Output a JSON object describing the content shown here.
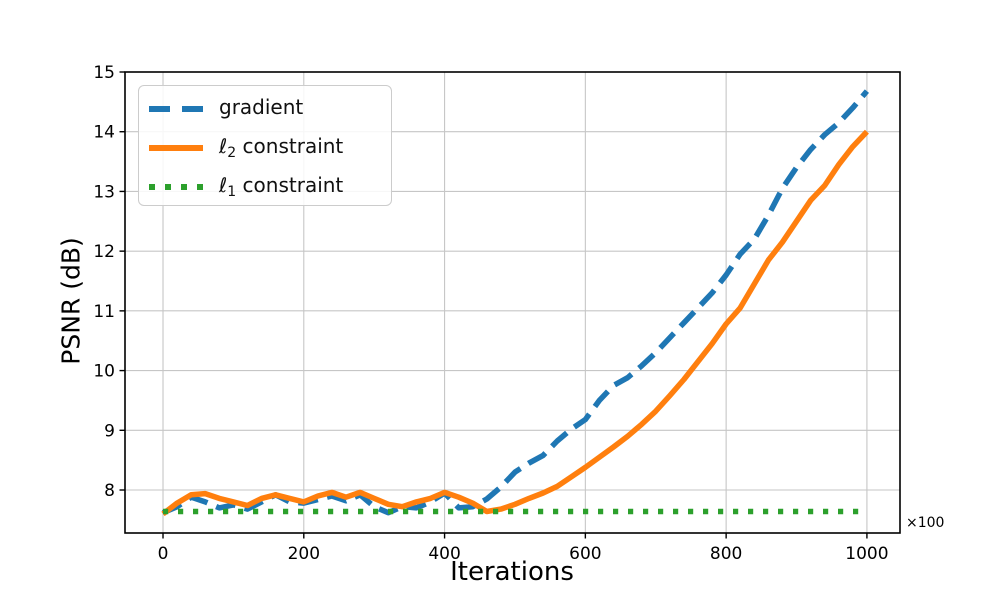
{
  "figure": {
    "background": "#ffffff",
    "spine_color": "#000000",
    "grid_color": "#c6c6c6",
    "tick_label_color": "#000000"
  },
  "legend": {
    "items": [
      {
        "ell": "",
        "sub": "",
        "main": "gradient"
      },
      {
        "ell": "ℓ",
        "sub": "2",
        "main": " constraint"
      },
      {
        "ell": "ℓ",
        "sub": "1",
        "main": " constraint"
      }
    ]
  },
  "chart_data": {
    "type": "line",
    "title": "",
    "xlabel": "Iterations",
    "ylabel": "PSNR (dB)",
    "x_offset_note": "×100",
    "xlim": [
      -54,
      1047
    ],
    "ylim": [
      7.28,
      15.0
    ],
    "x_ticks": [
      0,
      200,
      400,
      600,
      800,
      1000
    ],
    "y_ticks": [
      8,
      9,
      10,
      11,
      12,
      13,
      14,
      15
    ],
    "grid": true,
    "legend_position": "upper left",
    "x": [
      0,
      20,
      40,
      60,
      80,
      100,
      120,
      140,
      160,
      180,
      200,
      220,
      240,
      260,
      280,
      300,
      320,
      340,
      360,
      380,
      400,
      420,
      440,
      460,
      480,
      500,
      520,
      540,
      560,
      580,
      600,
      620,
      640,
      660,
      680,
      700,
      720,
      740,
      760,
      780,
      800,
      820,
      840,
      860,
      880,
      900,
      920,
      940,
      960,
      980,
      1000
    ],
    "series": [
      {
        "name": "gradient",
        "color": "#1f77b4",
        "line_style": "dashed",
        "line_width": 5.5,
        "values": [
          7.62,
          7.72,
          7.88,
          7.8,
          7.7,
          7.75,
          7.68,
          7.8,
          7.92,
          7.8,
          7.78,
          7.84,
          7.9,
          7.82,
          7.92,
          7.72,
          7.62,
          7.72,
          7.7,
          7.8,
          7.95,
          7.7,
          7.72,
          7.85,
          8.05,
          8.3,
          8.45,
          8.58,
          8.82,
          9.02,
          9.18,
          9.5,
          9.75,
          9.88,
          10.08,
          10.3,
          10.55,
          10.8,
          11.05,
          11.3,
          11.6,
          11.95,
          12.2,
          12.6,
          13.05,
          13.4,
          13.7,
          13.95,
          14.15,
          14.4,
          14.68
        ]
      },
      {
        "name": "ℓ2 constraint",
        "color": "#ff7f0e",
        "line_style": "solid",
        "line_width": 5.5,
        "values": [
          7.6,
          7.78,
          7.92,
          7.94,
          7.86,
          7.8,
          7.74,
          7.86,
          7.92,
          7.86,
          7.8,
          7.9,
          7.96,
          7.88,
          7.96,
          7.86,
          7.76,
          7.72,
          7.8,
          7.86,
          7.96,
          7.88,
          7.78,
          7.64,
          7.68,
          7.76,
          7.86,
          7.95,
          8.06,
          8.22,
          8.38,
          8.55,
          8.72,
          8.9,
          9.1,
          9.32,
          9.58,
          9.85,
          10.15,
          10.45,
          10.78,
          11.05,
          11.45,
          11.85,
          12.15,
          12.5,
          12.85,
          13.1,
          13.45,
          13.75,
          14.0
        ]
      },
      {
        "name": "ℓ1 constraint",
        "color": "#2ca02c",
        "line_style": "dotted",
        "line_width": 5.5,
        "values": [
          7.64,
          7.64,
          7.64,
          7.64,
          7.64,
          7.64,
          7.64,
          7.64,
          7.64,
          7.64,
          7.64,
          7.64,
          7.64,
          7.64,
          7.64,
          7.64,
          7.64,
          7.64,
          7.64,
          7.64,
          7.64,
          7.64,
          7.64,
          7.64,
          7.64,
          7.64,
          7.64,
          7.64,
          7.64,
          7.64,
          7.64,
          7.64,
          7.64,
          7.64,
          7.64,
          7.64,
          7.64,
          7.64,
          7.64,
          7.64,
          7.64,
          7.64,
          7.64,
          7.64,
          7.64,
          7.64,
          7.64,
          7.64,
          7.64,
          7.64,
          7.64
        ]
      }
    ]
  }
}
